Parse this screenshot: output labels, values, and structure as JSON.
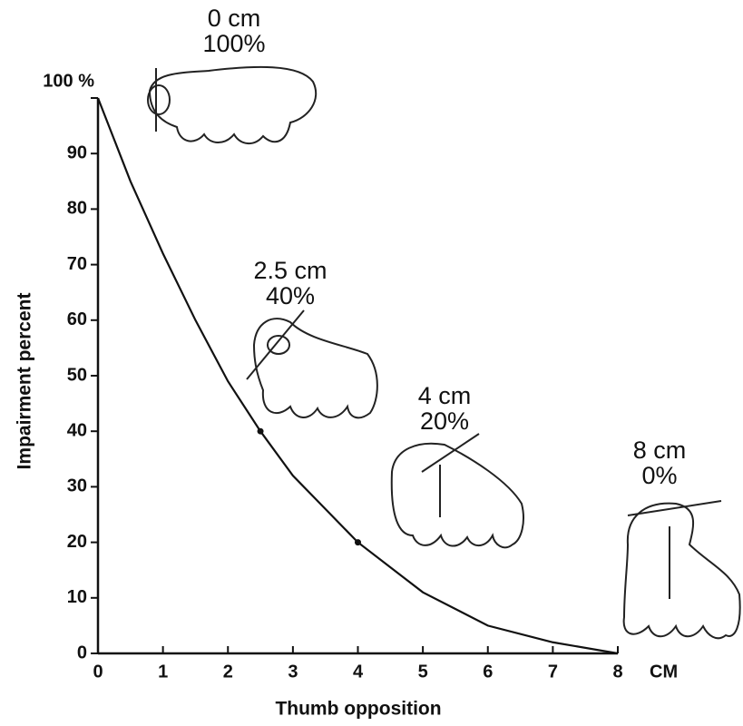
{
  "chart_data": {
    "type": "line",
    "xlabel": "Thumb opposition",
    "ylabel": "Impairment percent",
    "x_unit": "CM",
    "x": [
      0,
      0.5,
      1,
      1.5,
      2,
      2.5,
      3,
      3.5,
      4,
      5,
      6,
      7,
      8
    ],
    "series": [
      {
        "color": "#111111",
        "values": [
          100,
          85,
          72,
          60,
          49,
          40,
          32,
          26,
          20,
          11,
          5,
          2,
          0
        ]
      }
    ],
    "marked_points": {
      "x": [
        2.5,
        4
      ],
      "values": [
        40,
        20
      ]
    },
    "annotations": [
      {
        "lines": [
          "0 cm",
          "100%"
        ]
      },
      {
        "lines": [
          "2.5 cm",
          "40%"
        ]
      },
      {
        "lines": [
          "4 cm",
          "20%"
        ]
      },
      {
        "lines": [
          "8 cm",
          "0%"
        ]
      }
    ],
    "xlim": [
      0,
      8
    ],
    "xticks": [
      0,
      1,
      2,
      3,
      4,
      5,
      6,
      7,
      8
    ],
    "ylim": [
      0,
      100
    ],
    "yticks": [
      0,
      10,
      20,
      30,
      40,
      50,
      60,
      70,
      80,
      90,
      {
        "value": 100,
        "label": "100 %"
      }
    ],
    "grid": false
  }
}
